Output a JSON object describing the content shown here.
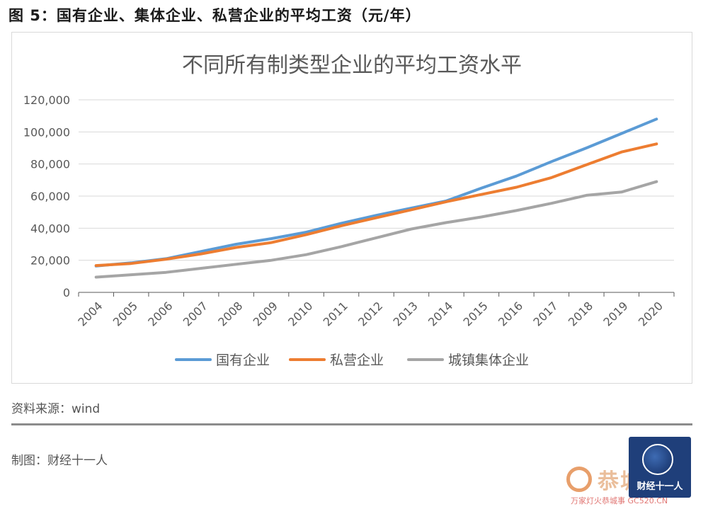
{
  "caption": "图 5：国有企业、集体企业、私营企业的平均工资（元/年）",
  "source": "资料来源：wind",
  "maker": "制图：财经十一人",
  "logo": {
    "text": "财经十一人",
    "icon": "globe-icon"
  },
  "watermark": {
    "text": "恭城",
    "sub": "万家灯火恭城事 GC520.CN"
  },
  "colors": {
    "state": "#5b9bd5",
    "private": "#ed7d31",
    "collective": "#a5a5a5",
    "grid": "#d9d9d9",
    "axis": "#595959"
  },
  "chart_data": {
    "type": "line",
    "title": "不同所有制类型企业的平均工资水平",
    "xlabel": "",
    "ylabel": "",
    "ylim": [
      0,
      120000
    ],
    "yticks": [
      0,
      20000,
      40000,
      60000,
      80000,
      100000,
      120000
    ],
    "ytick_labels": [
      "0",
      "20,000",
      "40,000",
      "60,000",
      "80,000",
      "100,000",
      "120,000"
    ],
    "categories": [
      "2004",
      "2005",
      "2006",
      "2007",
      "2008",
      "2009",
      "2010",
      "2011",
      "2012",
      "2013",
      "2014",
      "2015",
      "2016",
      "2017",
      "2018",
      "2019",
      "2020"
    ],
    "legend_position": "bottom",
    "grid": true,
    "series": [
      {
        "name": "国有企业",
        "color_key": "state",
        "values": [
          16400,
          18400,
          21000,
          25500,
          30000,
          33500,
          37500,
          43000,
          48000,
          52500,
          57000,
          65000,
          72500,
          81500,
          90000,
          99000,
          108000
        ]
      },
      {
        "name": "私营企业",
        "color_key": "private",
        "values": [
          16700,
          18000,
          20700,
          24000,
          28000,
          31000,
          36000,
          41500,
          46500,
          51500,
          56500,
          61000,
          65500,
          71500,
          79500,
          87500,
          92500
        ]
      },
      {
        "name": "城镇集体企业",
        "color_key": "collective",
        "values": [
          9500,
          11000,
          12500,
          15000,
          17500,
          20000,
          23500,
          28500,
          34000,
          39500,
          43500,
          47000,
          51000,
          55500,
          60500,
          62500,
          69000
        ]
      }
    ]
  }
}
